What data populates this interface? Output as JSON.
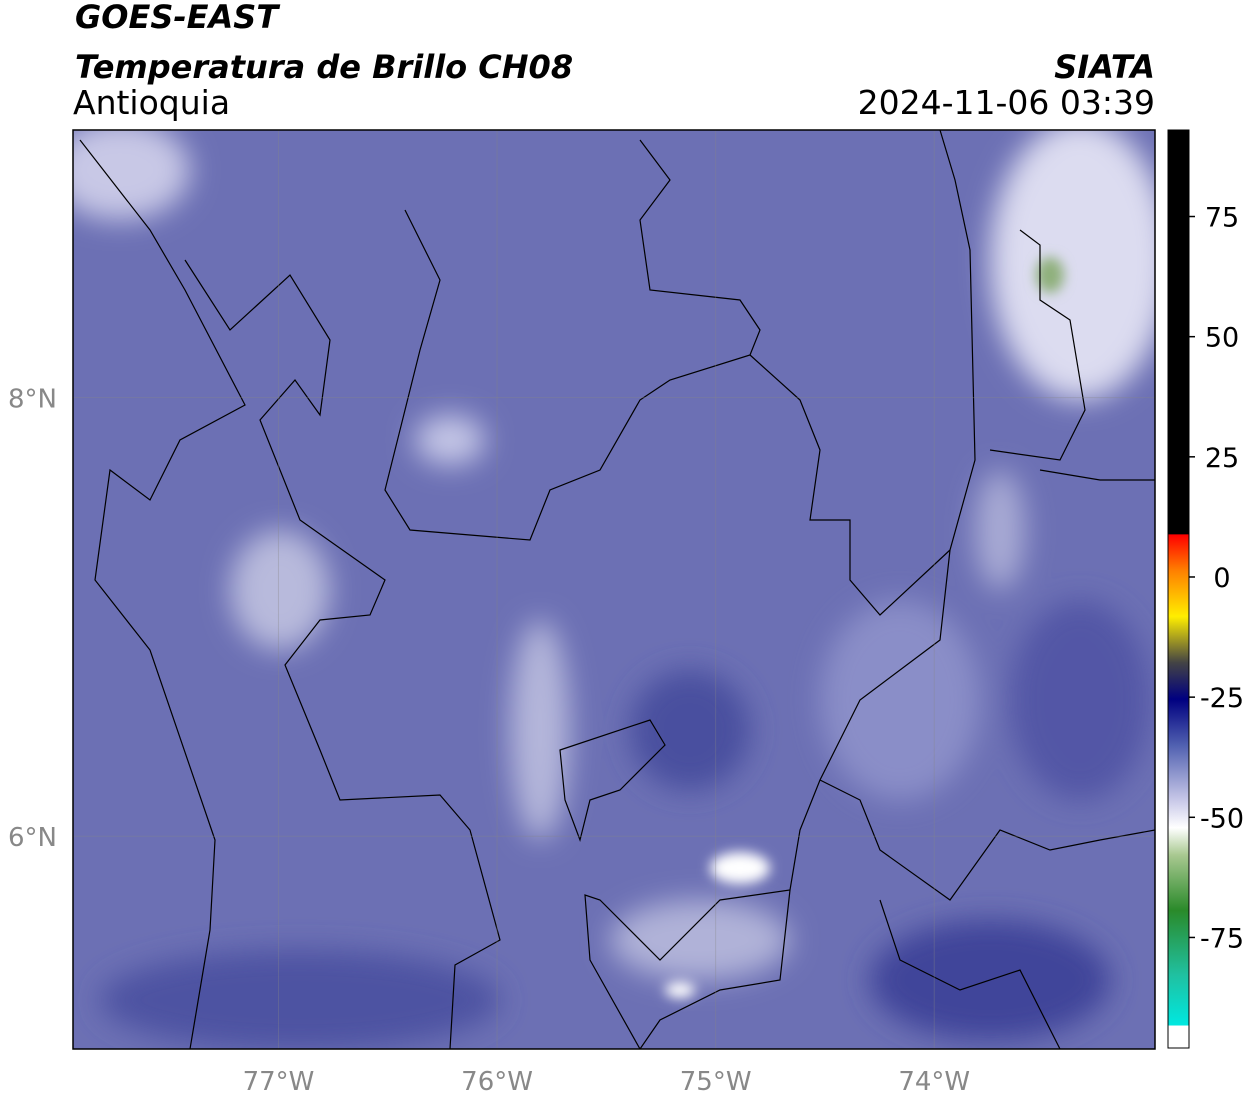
{
  "header": {
    "line1": "GOES-EAST",
    "line2": "Temperatura de Brillo CH08",
    "source": "SIATA",
    "region": "Antioquia",
    "datetime": "2024-11-06 03:39"
  },
  "map": {
    "lonlim": [
      -77.94,
      -72.99
    ],
    "latlim": [
      5.03,
      9.22
    ],
    "lon_ticks": [
      {
        "value": -77,
        "label": "77°W"
      },
      {
        "value": -76,
        "label": "76°W"
      },
      {
        "value": -75,
        "label": "75°W"
      },
      {
        "value": -74,
        "label": "74°W"
      }
    ],
    "lat_ticks": [
      {
        "value": 8,
        "label": "8°N"
      },
      {
        "value": 6,
        "label": "6°N"
      }
    ]
  },
  "colorbar": {
    "range": [
      -98,
      93
    ],
    "ticks": [
      75,
      50,
      25,
      0,
      -25,
      -50,
      -75
    ]
  }
}
